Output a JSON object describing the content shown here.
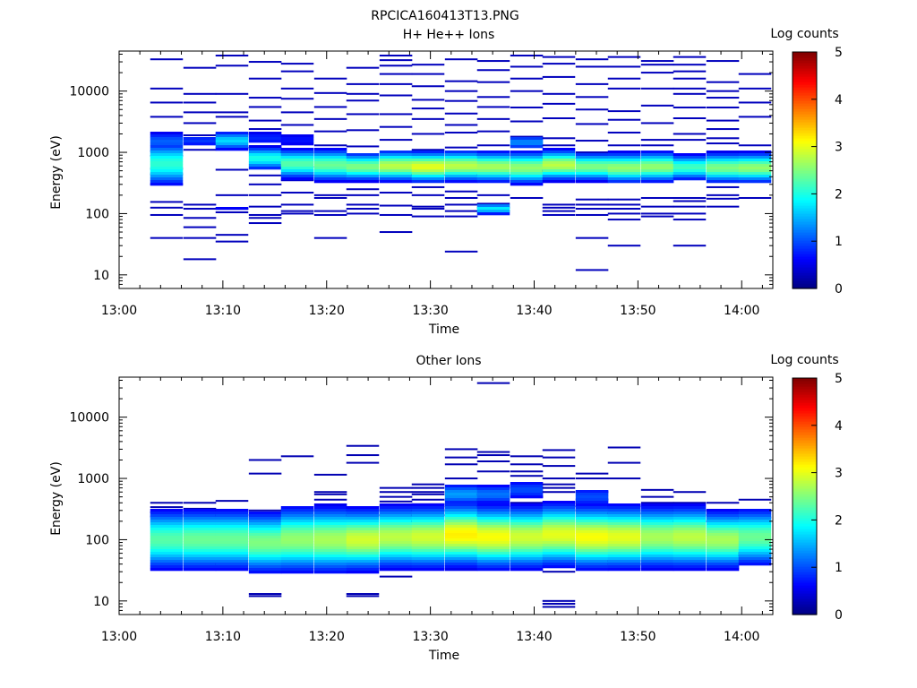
{
  "figure_title": "RPCICA160413T13.PNG",
  "chart_data": [
    {
      "type": "heatmap",
      "title": "H+ He++ Ions",
      "xlabel": "Time",
      "ylabel": "Energy (eV)",
      "x_ticks": [
        "13:00",
        "13:10",
        "13:20",
        "13:30",
        "13:40",
        "13:50",
        "14:00"
      ],
      "x_range_minutes": [
        0,
        63
      ],
      "y_scale": "log",
      "y_range": [
        6,
        45000
      ],
      "y_ticks": [
        {
          "value": 10,
          "label": "10"
        },
        {
          "value": 100,
          "label": "100"
        },
        {
          "value": 1000,
          "label": "1000"
        },
        {
          "value": 10000,
          "label": "10000"
        }
      ],
      "colorbar": {
        "label": "Log counts",
        "min": 0,
        "max": 5,
        "ticks": [
          "0",
          "1",
          "2",
          "3",
          "4",
          "5"
        ]
      },
      "time_bins_start_minutes": [
        3,
        6.2,
        9.3,
        12.5,
        15.6,
        18.8,
        21.9,
        25.1,
        28.2,
        31.4,
        34.5,
        37.7,
        40.8,
        44,
        47.1,
        50.3,
        53.4,
        56.6,
        59.7
      ],
      "bin_width_minutes": 3.15,
      "noise_level": 0.3,
      "columns": [
        {
          "noise": [
            40,
            95,
            125,
            155,
            300,
            440,
            540,
            880,
            1050,
            3800,
            6500,
            11000,
            33000
          ],
          "peak": [
            [
              650,
              2.1,
              0.22
            ],
            [
              1500,
              1.1,
              0.12
            ]
          ]
        },
        {
          "noise": [
            18,
            40,
            60,
            85,
            120,
            140,
            1100,
            1900,
            3000,
            4500,
            6500,
            9000,
            24000
          ],
          "peak": [
            [
              1550,
              0.9,
              0.08
            ]
          ]
        },
        {
          "noise": [
            35,
            45,
            105,
            120,
            200,
            520,
            1200,
            2000,
            3800,
            4500,
            9000,
            26000,
            38000
          ],
          "peak": [
            [
              1550,
              1.7,
              0.1
            ],
            [
              120,
              0.6,
              0.08
            ]
          ]
        },
        {
          "noise": [
            70,
            85,
            95,
            130,
            200,
            300,
            420,
            1200,
            2400,
            3300,
            5500,
            7800,
            16000,
            30000
          ],
          "peak": [
            [
              800,
              2.0,
              0.12
            ],
            [
              1700,
              0.8,
              0.1
            ]
          ]
        },
        {
          "noise": [
            100,
            110,
            140,
            220,
            350,
            580,
            1000,
            2800,
            4500,
            7500,
            11000,
            21000,
            28000
          ],
          "peak": [
            [
              650,
              2.3,
              0.15
            ],
            [
              1600,
              0.7,
              0.1
            ]
          ]
        },
        {
          "noise": [
            40,
            95,
            110,
            180,
            200,
            420,
            1300,
            2200,
            3500,
            5500,
            9300,
            16000
          ],
          "peak": [
            [
              620,
              2.4,
              0.16
            ]
          ]
        },
        {
          "noise": [
            100,
            120,
            140,
            200,
            250,
            450,
            1250,
            2300,
            4200,
            7000,
            9000,
            13000,
            24000
          ],
          "peak": [
            [
              580,
              2.5,
              0.14
            ]
          ]
        },
        {
          "noise": [
            50,
            95,
            135,
            220,
            350,
            420,
            1600,
            2600,
            4200,
            8500,
            13000,
            19000,
            26000,
            32000,
            38000
          ],
          "peak": [
            [
              600,
              2.8,
              0.15
            ]
          ]
        },
        {
          "noise": [
            90,
            120,
            130,
            200,
            270,
            430,
            1100,
            2000,
            3500,
            5200,
            7200,
            12000,
            19000,
            27000
          ],
          "peak": [
            [
              580,
              3.0,
              0.15
            ]
          ]
        },
        {
          "noise": [
            24,
            90,
            110,
            140,
            180,
            230,
            420,
            1200,
            2100,
            2800,
            4300,
            6900,
            10000,
            14500,
            33000
          ],
          "peak": [
            [
              600,
              2.8,
              0.15
            ]
          ]
        },
        {
          "noise": [
            110,
            125,
            145,
            200,
            430,
            900,
            1300,
            2200,
            3500,
            5500,
            8000,
            14000,
            22000,
            31000
          ],
          "peak": [
            [
              580,
              2.7,
              0.15
            ],
            [
              120,
              1.8,
              0.06
            ]
          ]
        },
        {
          "noise": [
            180,
            420,
            1800,
            3200,
            5400,
            10000,
            16000,
            25000,
            38000
          ],
          "peak": [
            [
              560,
              2.6,
              0.16
            ],
            [
              1450,
              1.3,
              0.08
            ]
          ]
        },
        {
          "noise": [
            95,
            110,
            125,
            140,
            500,
            800,
            1300,
            1700,
            3600,
            6200,
            9000,
            17000,
            28000,
            36000
          ],
          "peak": [
            [
              620,
              2.8,
              0.15
            ]
          ]
        },
        {
          "noise": [
            12,
            40,
            95,
            120,
            140,
            170,
            330,
            420,
            1000,
            1550,
            2900,
            5000,
            8000,
            13000,
            25000,
            33000
          ],
          "peak": [
            [
              580,
              2.5,
              0.14
            ]
          ]
        },
        {
          "noise": [
            30,
            80,
            100,
            120,
            140,
            170,
            400,
            1300,
            2100,
            3400,
            4700,
            11000,
            16000,
            25000,
            36000
          ],
          "peak": [
            [
              560,
              2.6,
              0.15
            ]
          ]
        },
        {
          "noise": [
            90,
            100,
            130,
            180,
            400,
            800,
            1300,
            1600,
            3000,
            5800,
            11000,
            20000,
            27000,
            31000
          ],
          "peak": [
            [
              580,
              2.6,
              0.15
            ]
          ]
        },
        {
          "noise": [
            30,
            80,
            100,
            130,
            160,
            180,
            420,
            1600,
            2000,
            3600,
            5400,
            9000,
            11000,
            16000,
            21000,
            27000,
            36000
          ],
          "peak": [
            [
              570,
              2.2,
              0.13
            ]
          ]
        },
        {
          "noise": [
            130,
            175,
            200,
            270,
            450,
            800,
            1000,
            1400,
            1700,
            2400,
            3300,
            5400,
            7800,
            10000,
            14000,
            31000
          ],
          "peak": [
            [
              560,
              2.5,
              0.15
            ]
          ]
        },
        {
          "noise": [
            180,
            1000,
            1300,
            3800,
            6500,
            11000,
            19000
          ],
          "peak": [
            [
              560,
              2.6,
              0.15
            ]
          ]
        }
      ]
    },
    {
      "type": "heatmap",
      "title": "Other Ions",
      "xlabel": "Time",
      "ylabel": "Energy (eV)",
      "x_ticks": [
        "13:00",
        "13:10",
        "13:20",
        "13:30",
        "13:40",
        "13:50",
        "14:00"
      ],
      "x_range_minutes": [
        0,
        63
      ],
      "y_scale": "log",
      "y_range": [
        6,
        45000
      ],
      "y_ticks": [
        {
          "value": 10,
          "label": "10"
        },
        {
          "value": 100,
          "label": "100"
        },
        {
          "value": 1000,
          "label": "1000"
        },
        {
          "value": 10000,
          "label": "10000"
        }
      ],
      "colorbar": {
        "label": "Log counts",
        "min": 0,
        "max": 5,
        "ticks": [
          "0",
          "1",
          "2",
          "3",
          "4",
          "5"
        ]
      },
      "time_bins_start_minutes": [
        3,
        6.2,
        9.3,
        12.5,
        15.6,
        18.8,
        21.9,
        25.1,
        28.2,
        31.4,
        34.5,
        37.7,
        40.8,
        44,
        47.1,
        50.3,
        53.4,
        56.6,
        59.7
      ],
      "bin_width_minutes": 3.15,
      "noise_level": 0.25,
      "columns": [
        {
          "noise": [
            240,
            280,
            340,
            400
          ],
          "peak": [
            [
              100,
              2.3,
              0.3
            ]
          ]
        },
        {
          "noise": [
            250,
            320,
            400
          ],
          "peak": [
            [
              100,
              2.4,
              0.3
            ]
          ]
        },
        {
          "noise": [
            40,
            250,
            300,
            430
          ],
          "peak": [
            [
              100,
              2.4,
              0.3
            ]
          ]
        },
        {
          "noise": [
            12,
            13,
            300,
            1200,
            2000
          ],
          "peak": [
            [
              90,
              2.5,
              0.3
            ]
          ]
        },
        {
          "noise": [
            250,
            300,
            2300
          ],
          "peak": [
            [
              100,
              2.6,
              0.32
            ]
          ]
        },
        {
          "noise": [
            300,
            450,
            550,
            600,
            1150
          ],
          "peak": [
            [
              100,
              2.7,
              0.32
            ]
          ]
        },
        {
          "noise": [
            12,
            13,
            250,
            300,
            1800,
            2400,
            3400
          ],
          "peak": [
            [
              100,
              2.9,
              0.3
            ]
          ]
        },
        {
          "noise": [
            25,
            35,
            40,
            250,
            300,
            350,
            420,
            500,
            600,
            700
          ],
          "peak": [
            [
              110,
              2.8,
              0.3
            ]
          ]
        },
        {
          "noise": [
            200,
            250,
            300,
            380,
            450,
            550,
            600,
            700,
            800
          ],
          "peak": [
            [
              110,
              2.9,
              0.3
            ]
          ]
        },
        {
          "noise": [
            250,
            300,
            350,
            450,
            1000,
            1700,
            2200,
            3000
          ],
          "peak": [
            [
              120,
              3.2,
              0.3
            ],
            [
              550,
              1.4,
              0.12
            ]
          ]
        },
        {
          "noise": [
            45,
            250,
            350,
            450,
            550,
            700,
            1300,
            1900,
            2400,
            2700,
            36000
          ],
          "peak": [
            [
              110,
              3.1,
              0.3
            ],
            [
              550,
              1.2,
              0.12
            ]
          ]
        },
        {
          "noise": [
            40,
            300,
            400,
            500,
            800,
            1100,
            1300,
            1700,
            2300
          ],
          "peak": [
            [
              110,
              2.9,
              0.3
            ],
            [
              650,
              1.0,
              0.12
            ]
          ]
        },
        {
          "noise": [
            8,
            9,
            10,
            30,
            300,
            350,
            400,
            600,
            700,
            800,
            1000,
            1600,
            2200,
            2900
          ],
          "peak": [
            [
              120,
              3.0,
              0.3
            ],
            [
              280,
              0.7,
              0.12
            ]
          ]
        },
        {
          "noise": [
            40,
            45,
            300,
            350,
            450,
            600,
            1000,
            1200
          ],
          "peak": [
            [
              110,
              3.1,
              0.3
            ],
            [
              500,
              1.0,
              0.12
            ]
          ]
        },
        {
          "noise": [
            40,
            45,
            270,
            350,
            1000,
            1800,
            3200
          ],
          "peak": [
            [
              110,
              3.0,
              0.3
            ],
            [
              300,
              0.8,
              0.1
            ]
          ]
        },
        {
          "noise": [
            40,
            270,
            300,
            400,
            500,
            650
          ],
          "peak": [
            [
              110,
              2.7,
              0.3
            ],
            [
              260,
              0.6,
              0.1
            ]
          ]
        },
        {
          "noise": [
            200,
            300,
            400,
            600
          ],
          "peak": [
            [
              110,
              2.8,
              0.3
            ]
          ]
        },
        {
          "noise": [
            200,
            250,
            300,
            400
          ],
          "peak": [
            [
              100,
              2.7,
              0.28
            ]
          ]
        },
        {
          "noise": [
            55,
            60,
            230,
            300,
            450
          ],
          "peak": [
            [
              110,
              2.4,
              0.28
            ]
          ]
        }
      ]
    }
  ]
}
